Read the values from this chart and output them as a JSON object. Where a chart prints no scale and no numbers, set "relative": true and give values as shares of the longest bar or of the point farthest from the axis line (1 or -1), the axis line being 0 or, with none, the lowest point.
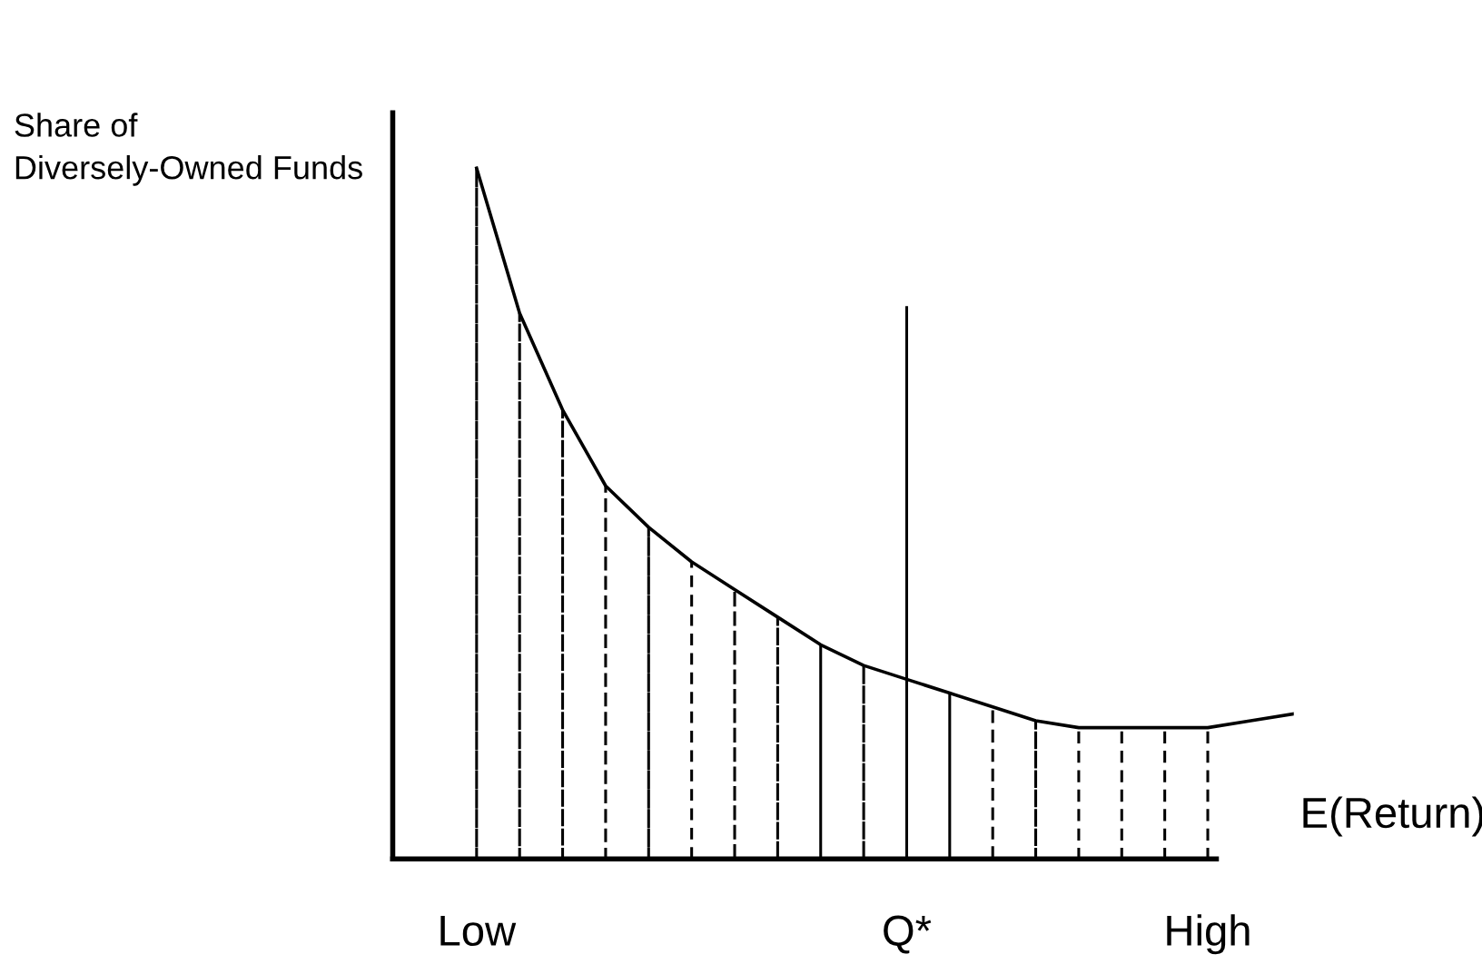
{
  "chart_data": {
    "type": "line",
    "relative": true,
    "xlabel": "E(Return)",
    "ylabel": "Share of\nDiversely-Owned Funds",
    "categories": [
      "Low",
      null,
      null,
      null,
      null,
      null,
      null,
      null,
      null,
      null,
      "Q*",
      null,
      null,
      null,
      null,
      null,
      null,
      "High",
      null,
      null
    ],
    "grid": false,
    "legend": false,
    "marker": "none",
    "series": [
      {
        "type": "bar",
        "color": "#000000",
        "line_style": "dashed",
        "values": [
          1,
          0.79,
          0.65,
          0.54,
          0.48,
          0.43,
          0.39,
          0.35,
          0.31,
          0.28,
          null,
          0.24,
          0.22,
          0.2,
          0.19,
          0.19,
          0.19,
          0.19,
          null,
          null
        ]
      },
      {
        "color": "#000000",
        "line_style": "solid",
        "values": [
          1,
          0.79,
          0.65,
          0.54,
          0.48,
          0.43,
          0.39,
          0.35,
          0.31,
          0.28,
          0.26,
          0.24,
          0.22,
          0.2,
          0.19,
          0.19,
          0.19,
          0.19,
          0.2,
          0.21
        ]
      },
      {
        "type": "bar",
        "color": "#000000",
        "line_style": "solid",
        "values": [
          null,
          null,
          null,
          null,
          null,
          null,
          null,
          null,
          null,
          null,
          0.8,
          null,
          null,
          null,
          null,
          null,
          null,
          null,
          null,
          null
        ]
      }
    ]
  }
}
